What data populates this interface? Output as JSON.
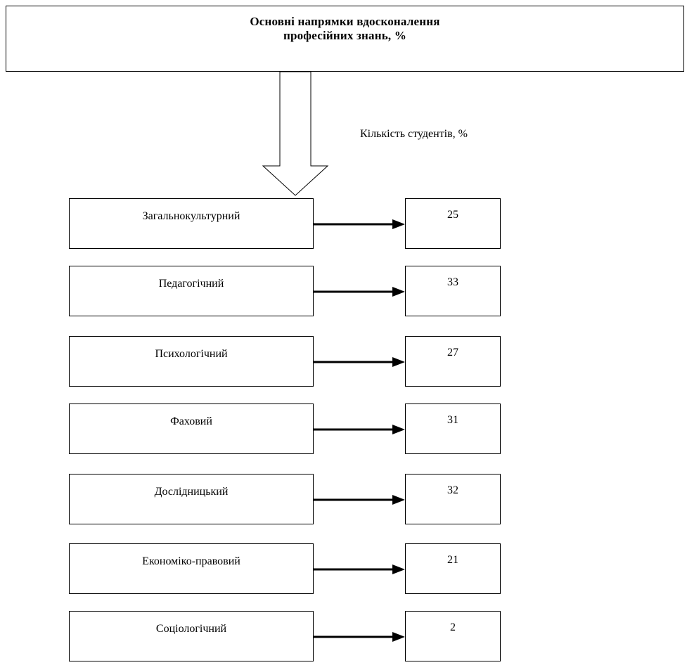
{
  "header": {
    "line1": "Основні напрямки вдосконалення",
    "line2": "професійних знань, %"
  },
  "column_label": "Кількість студентів, %",
  "items": [
    {
      "label": "Загальнокультурний",
      "value": "25"
    },
    {
      "label": "Педагогічний",
      "value": "33"
    },
    {
      "label": "Психологічний",
      "value": "27"
    },
    {
      "label": "Фаховий",
      "value": "31"
    },
    {
      "label": "Дослідницький",
      "value": "32"
    },
    {
      "label": "Економіко-правовий",
      "value": "21"
    },
    {
      "label": "Соціологічний",
      "value": "2"
    }
  ]
}
